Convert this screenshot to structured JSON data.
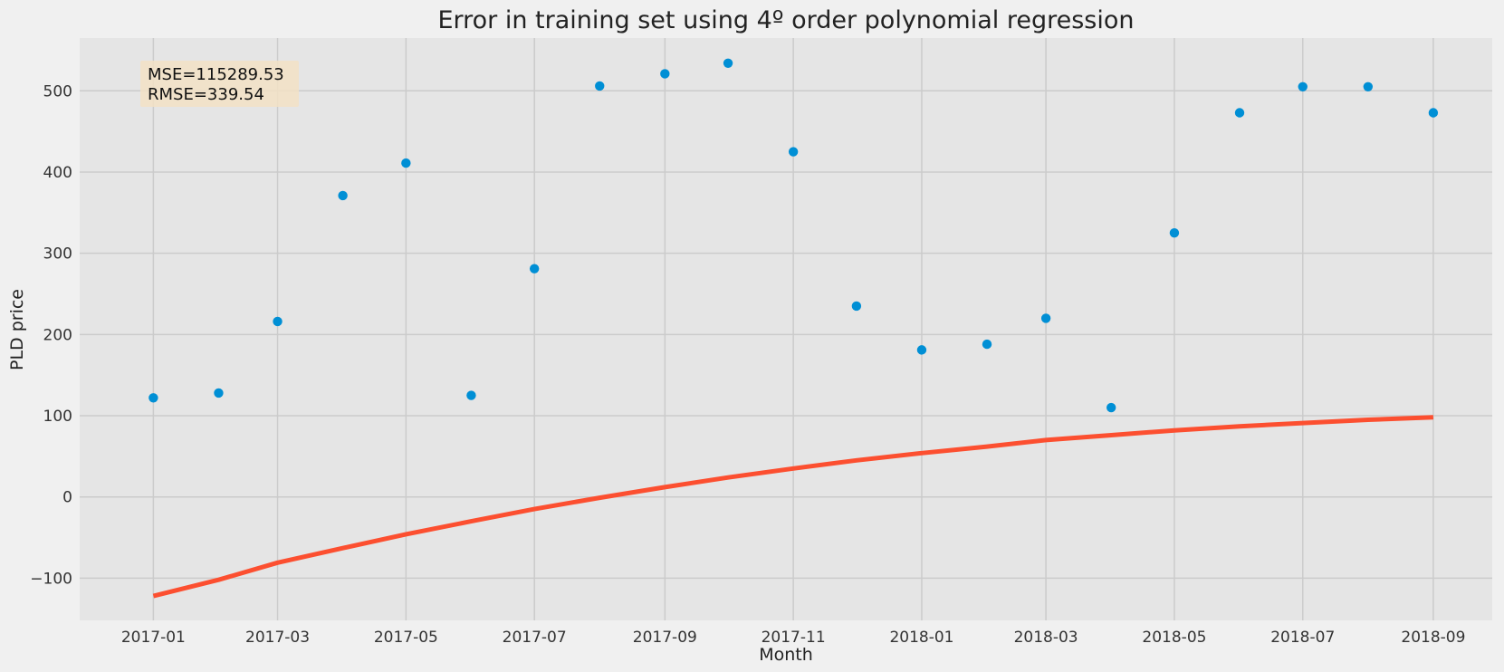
{
  "chart_data": {
    "type": "scatter",
    "title": "Error in training set using 4º order polynomial regression",
    "xlabel": "Month",
    "ylabel": "PLD price",
    "xlim": [
      "2016-11-27",
      "2018-09-29"
    ],
    "ylim": [
      -152,
      565
    ],
    "grid": true,
    "x_ticks": [
      "2017-01",
      "2017-03",
      "2017-05",
      "2017-07",
      "2017-09",
      "2017-11",
      "2018-01",
      "2018-03",
      "2018-05",
      "2018-07",
      "2018-09"
    ],
    "y_ticks": [
      -100,
      0,
      100,
      200,
      300,
      400,
      500
    ],
    "y_tick_labels": [
      "−100",
      "0",
      "100",
      "200",
      "300",
      "400",
      "500"
    ],
    "annotation": [
      "MSE=115289.53",
      "RMSE=339.54"
    ],
    "colors": {
      "points": "#008fd5",
      "fit": "#fc4f30",
      "annotation_box": "#f3e2c6"
    },
    "series": [
      {
        "kind": "scatter",
        "x": [
          "2017-01-01",
          "2017-02-01",
          "2017-03-01",
          "2017-04-01",
          "2017-05-01",
          "2017-06-01",
          "2017-07-01",
          "2017-08-01",
          "2017-09-01",
          "2017-10-01",
          "2017-11-01",
          "2017-12-01",
          "2018-01-01",
          "2018-02-01",
          "2018-03-01",
          "2018-04-01",
          "2018-05-01",
          "2018-06-01",
          "2018-07-01",
          "2018-08-01",
          "2018-09-01"
        ],
        "y": [
          122,
          128,
          216,
          371,
          411,
          125,
          281,
          506,
          521,
          534,
          425,
          235,
          181,
          188,
          220,
          110,
          325,
          473,
          505,
          505,
          473
        ]
      },
      {
        "kind": "line",
        "x": [
          "2017-01-01",
          "2017-02-01",
          "2017-03-01",
          "2017-04-01",
          "2017-05-01",
          "2017-06-01",
          "2017-07-01",
          "2017-08-01",
          "2017-09-01",
          "2017-10-01",
          "2017-11-01",
          "2017-12-01",
          "2018-01-01",
          "2018-02-01",
          "2018-03-01",
          "2018-04-01",
          "2018-05-01",
          "2018-06-01",
          "2018-07-01",
          "2018-08-01",
          "2018-09-01"
        ],
        "y": [
          -122,
          -102,
          -81,
          -63,
          -46,
          -30,
          -15,
          -1,
          12,
          24,
          35,
          45,
          54,
          62,
          70,
          76,
          82,
          87,
          91,
          95,
          98
        ]
      }
    ]
  }
}
